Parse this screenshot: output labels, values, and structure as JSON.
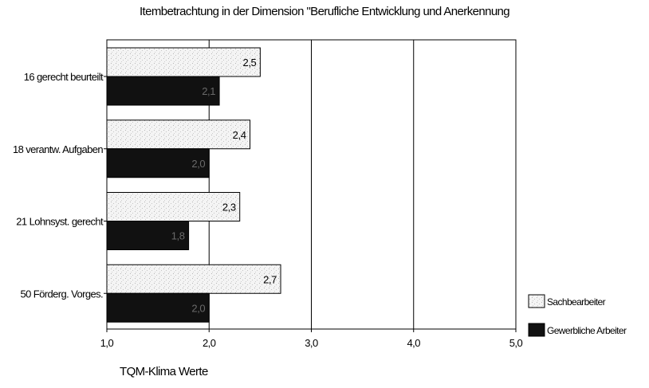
{
  "chart_data": {
    "type": "bar",
    "orientation": "horizontal",
    "title": "Itembetrachtung in der Dimension \"Berufliche Entwicklung und Anerkennung",
    "xlabel": "TQM-Klima Werte",
    "ylabel": "",
    "xlim": [
      1.0,
      5.0
    ],
    "ticks": [
      "1,0",
      "2,0",
      "3,0",
      "4,0",
      "5,0"
    ],
    "tick_values": [
      1,
      2,
      3,
      4,
      5
    ],
    "grid": "vertical",
    "categories": [
      "16 gerecht beurteilt",
      "18 verantw. Aufgaben",
      "21 Lohnsyst. gerecht",
      "50 Förderg. Vorges."
    ],
    "series": [
      {
        "name": "Sachbearbeiter",
        "values": [
          2.5,
          2.4,
          2.3,
          2.7
        ],
        "labels": [
          "2,5",
          "2,4",
          "2,3",
          "2,7"
        ],
        "color": "#f2f2f2"
      },
      {
        "name": "Gewerbliche Arbeiter",
        "values": [
          2.1,
          2.0,
          1.8,
          2.0
        ],
        "labels": [
          "2,1",
          "2,0",
          "1,8",
          "2,0"
        ],
        "color": "#111111"
      }
    ],
    "legend": "bottom-right"
  }
}
